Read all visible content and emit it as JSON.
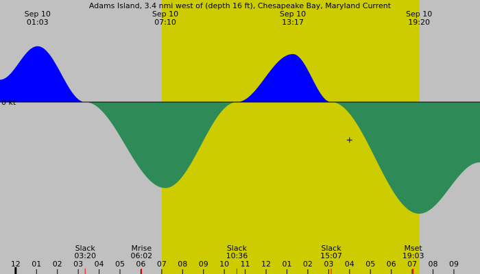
{
  "chart_data": {
    "type": "area",
    "title": "Adams Island, 3.4 nmi west of (depth 16 ft), Chesapeake Bay, Maryland Current",
    "zero_label": "0 kt",
    "x_unit": "hours",
    "x_range": [
      -0.75,
      22.25
    ],
    "y_range": [
      -1.0,
      1.0
    ],
    "colors": {
      "background": "#c0c0c0",
      "daylight": "#cccc00",
      "flood": "#0000ff",
      "ebb": "#2e8b57",
      "tick_minor": "#000000",
      "tick_event": "#ff0000"
    },
    "daylight_hours": [
      7.0,
      19.35
    ],
    "now_marker": {
      "hour": 16.0,
      "value": -0.34
    },
    "current_curve": [
      {
        "hour": -0.75,
        "kt": 0.2
      },
      {
        "hour": 1.05,
        "kt": 0.5
      },
      {
        "hour": 3.33,
        "kt": 0.0
      },
      {
        "hour": 7.17,
        "kt": -0.77
      },
      {
        "hour": 10.6,
        "kt": 0.0
      },
      {
        "hour": 13.28,
        "kt": 0.43
      },
      {
        "hour": 15.12,
        "kt": 0.0
      },
      {
        "hour": 19.33,
        "kt": -1.0
      },
      {
        "hour": 22.25,
        "kt": -0.54
      }
    ],
    "top_labels": [
      {
        "hour": 1.05,
        "date": "Sep 10",
        "time": "01:03"
      },
      {
        "hour": 7.17,
        "date": "Sep 10",
        "time": "07:10"
      },
      {
        "hour": 13.28,
        "date": "Sep 10",
        "time": "13:17"
      },
      {
        "hour": 19.33,
        "date": "Sep 10",
        "time": "19:20"
      }
    ],
    "bottom_events": [
      {
        "hour": 3.33,
        "name": "Slack",
        "time": "03:20"
      },
      {
        "hour": 6.03,
        "name": "Mrise",
        "time": "06:02"
      },
      {
        "hour": 10.6,
        "name": "Slack",
        "time": "10:36"
      },
      {
        "hour": 15.12,
        "name": "Slack",
        "time": "15:07"
      },
      {
        "hour": 19.05,
        "name": "Mset",
        "time": "19:03"
      }
    ],
    "hour_ticks": [
      {
        "hour": -1,
        "label": "11"
      },
      {
        "hour": 0,
        "label": "12"
      },
      {
        "hour": 1,
        "label": "01"
      },
      {
        "hour": 2,
        "label": "02"
      },
      {
        "hour": 3,
        "label": "03"
      },
      {
        "hour": 4,
        "label": "04"
      },
      {
        "hour": 5,
        "label": "05"
      },
      {
        "hour": 6,
        "label": "06"
      },
      {
        "hour": 7,
        "label": "07"
      },
      {
        "hour": 8,
        "label": "08"
      },
      {
        "hour": 9,
        "label": "09"
      },
      {
        "hour": 10,
        "label": "10"
      },
      {
        "hour": 11,
        "label": "11"
      },
      {
        "hour": 12,
        "label": "12"
      },
      {
        "hour": 13,
        "label": "01"
      },
      {
        "hour": 14,
        "label": "02"
      },
      {
        "hour": 15,
        "label": "03"
      },
      {
        "hour": 16,
        "label": "04"
      },
      {
        "hour": 17,
        "label": "05"
      },
      {
        "hour": 18,
        "label": "06"
      },
      {
        "hour": 19,
        "label": "07"
      },
      {
        "hour": 20,
        "label": "08"
      },
      {
        "hour": 21,
        "label": "09"
      }
    ]
  }
}
